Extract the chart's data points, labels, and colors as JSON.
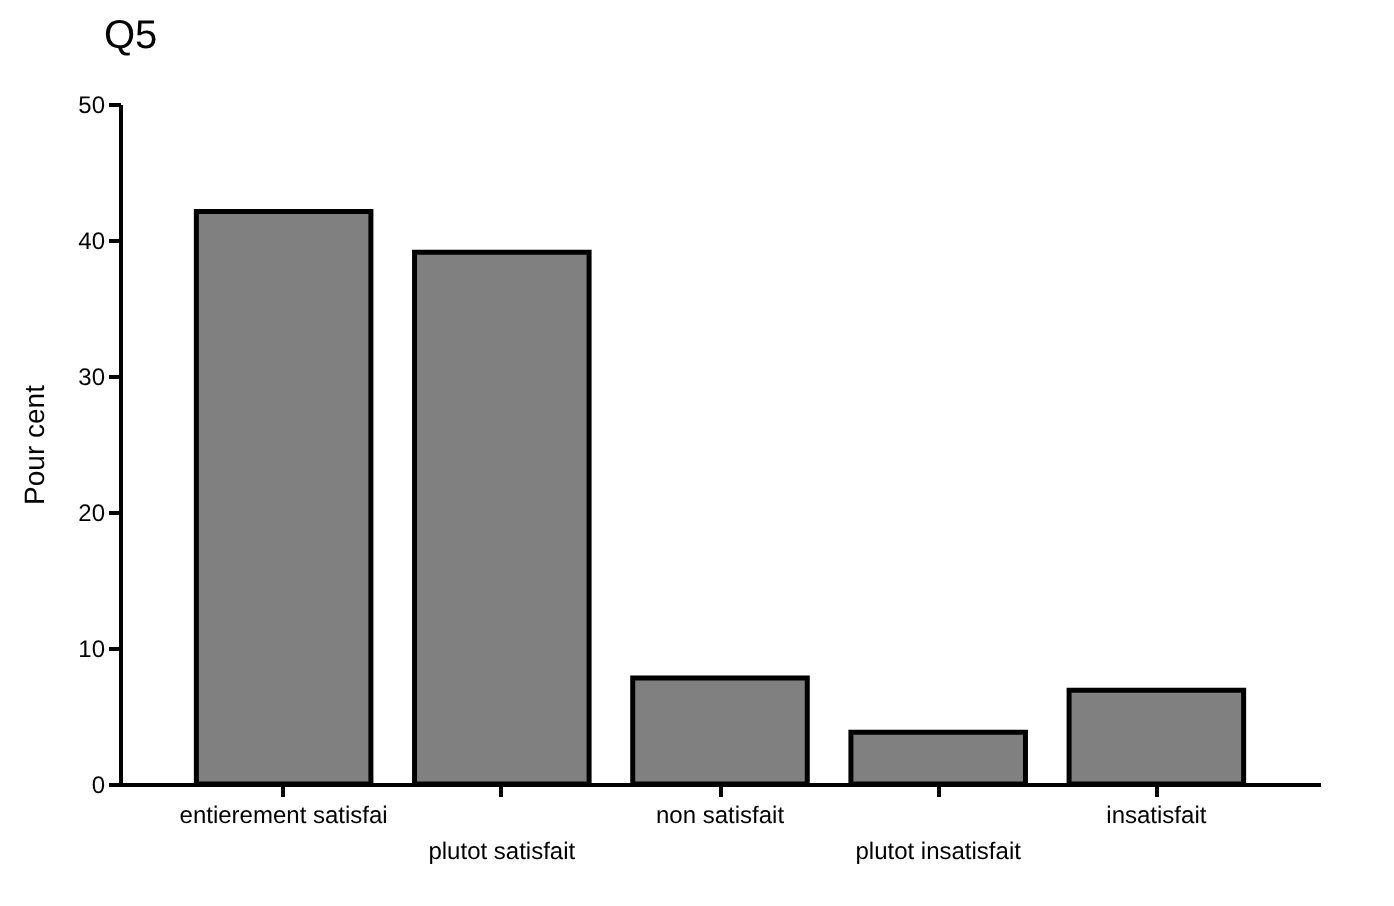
{
  "chart_data": {
    "type": "bar",
    "title": "Q5",
    "ylabel": "Pour cent",
    "categories": [
      "entierement satisfai",
      "plutot satisfait",
      "non satisfait",
      "plutot insatisfait",
      "insatisfait"
    ],
    "values": [
      42.1,
      39.1,
      7.8,
      3.8,
      6.9
    ],
    "color": "#808080",
    "ylim": [
      0,
      50
    ],
    "yticks": [
      0,
      10,
      20,
      30,
      40,
      50
    ],
    "grid": false
  }
}
